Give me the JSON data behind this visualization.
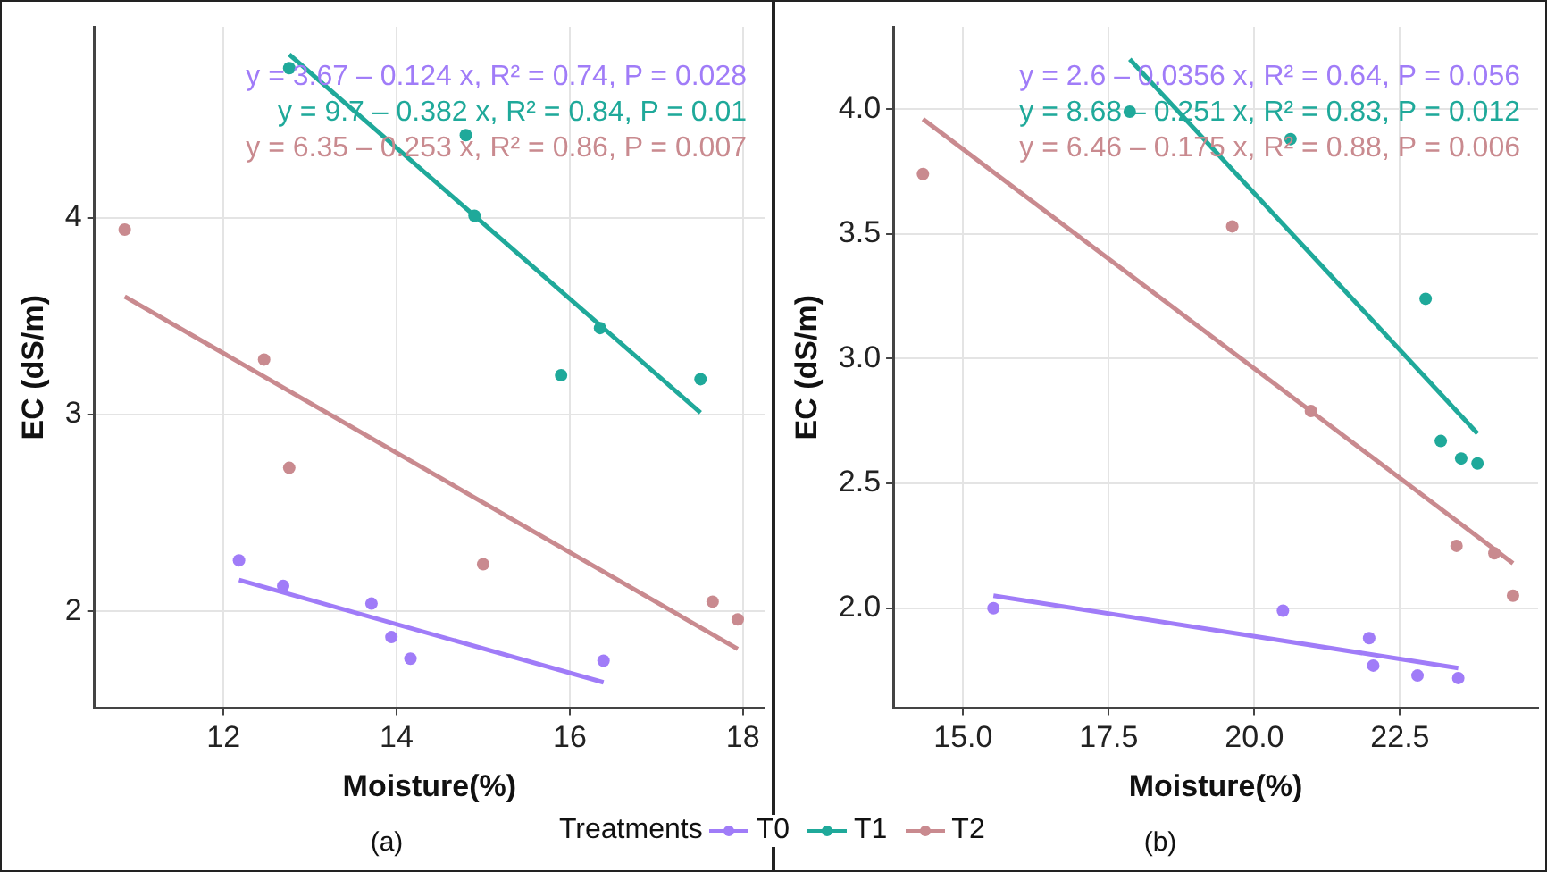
{
  "chart_data": [
    {
      "type": "scatter",
      "xlabel": "Moisture(%)",
      "ylabel": "EC (dS/m)",
      "xlim": [
        10.51,
        18.25
      ],
      "ylim": [
        1.51,
        4.97
      ],
      "xticks": [
        12,
        14,
        16,
        18
      ],
      "yticks": [
        2,
        3,
        4
      ],
      "grid": true,
      "marker": "circle",
      "legend": "bottom",
      "legend_title": "Treatments",
      "annotations": [
        "y = 3.67 – 0.124 x, R² = 0.74, P = 0.028",
        "y = 9.7 – 0.382 x, R² = 0.84, P = 0.01",
        "y = 6.35 – 0.253 x, R² = 0.86, P = 0.007",
        "(a)"
      ],
      "series": [
        {
          "name": "T0",
          "color": "#a07cf8",
          "type": "scatter",
          "x": [
            12.18,
            12.69,
            13.71,
            13.94,
            14.16,
            16.39
          ],
          "values": [
            2.26,
            2.13,
            2.04,
            1.87,
            1.76,
            1.75
          ]
        },
        {
          "name": "T1",
          "color": "#1fa99a",
          "type": "scatter",
          "x": [
            12.76,
            14.8,
            14.9,
            15.9,
            16.35,
            17.51
          ],
          "values": [
            4.76,
            4.42,
            4.01,
            3.2,
            3.44,
            3.18
          ]
        },
        {
          "name": "T2",
          "color": "#c98a8f",
          "type": "scatter",
          "x": [
            10.86,
            12.47,
            12.76,
            15.0,
            17.65,
            17.94
          ],
          "values": [
            3.94,
            3.28,
            2.73,
            2.24,
            2.05,
            1.96
          ]
        },
        {
          "color": "#a07cf8",
          "type": "line",
          "marker": "none",
          "x": [
            12.18,
            16.39
          ],
          "values": [
            2.16,
            1.64
          ]
        },
        {
          "color": "#1fa99a",
          "type": "line",
          "marker": "none",
          "x": [
            12.76,
            17.51
          ],
          "values": [
            4.83,
            3.01
          ]
        },
        {
          "color": "#c98a8f",
          "type": "line",
          "marker": "none",
          "x": [
            10.86,
            17.94
          ],
          "values": [
            3.6,
            1.81
          ]
        }
      ]
    },
    {
      "type": "scatter",
      "xlabel": "Moisture(%)",
      "ylabel": "EC (dS/m)",
      "xlim": [
        13.8,
        24.87
      ],
      "ylim": [
        1.6,
        4.33
      ],
      "xticks": [
        {
          "value": 15,
          "label": "15.0"
        },
        17.5,
        {
          "value": 20,
          "label": "20.0"
        },
        22.5
      ],
      "yticks": [
        {
          "value": 2,
          "label": "2.0"
        },
        2.5,
        {
          "value": 3,
          "label": "3.0"
        },
        3.5,
        {
          "value": 4,
          "label": "4.0"
        }
      ],
      "grid": true,
      "marker": "circle",
      "annotations": [
        "y = 2.6 – 0.0356 x, R² = 0.64, P = 0.056",
        "y = 8.68 – 0.251 x, R² = 0.83, P = 0.012",
        "y = 6.46 – 0.175 x, R² = 0.88, P = 0.006",
        "(b)"
      ],
      "series": [
        {
          "color": "#a07cf8",
          "type": "scatter",
          "x": [
            15.52,
            20.49,
            21.97,
            22.04,
            22.8,
            23.5
          ],
          "values": [
            2.0,
            1.99,
            1.88,
            1.77,
            1.73,
            1.72
          ]
        },
        {
          "color": "#1fa99a",
          "type": "scatter",
          "x": [
            17.86,
            20.62,
            22.94,
            23.2,
            23.55,
            23.83
          ],
          "values": [
            3.99,
            3.88,
            3.24,
            2.67,
            2.6,
            2.58
          ]
        },
        {
          "color": "#c98a8f",
          "type": "scatter",
          "x": [
            14.31,
            19.62,
            20.97,
            23.47,
            24.12,
            24.44
          ],
          "values": [
            3.74,
            3.53,
            2.79,
            2.25,
            2.22,
            2.05
          ]
        },
        {
          "color": "#a07cf8",
          "type": "line",
          "marker": "none",
          "x": [
            15.52,
            23.5
          ],
          "values": [
            2.05,
            1.76
          ]
        },
        {
          "color": "#1fa99a",
          "type": "line",
          "marker": "none",
          "x": [
            17.86,
            23.83
          ],
          "values": [
            4.2,
            2.7
          ]
        },
        {
          "color": "#c98a8f",
          "type": "line",
          "marker": "none",
          "x": [
            14.31,
            24.44
          ],
          "values": [
            3.96,
            2.18
          ]
        }
      ]
    }
  ]
}
